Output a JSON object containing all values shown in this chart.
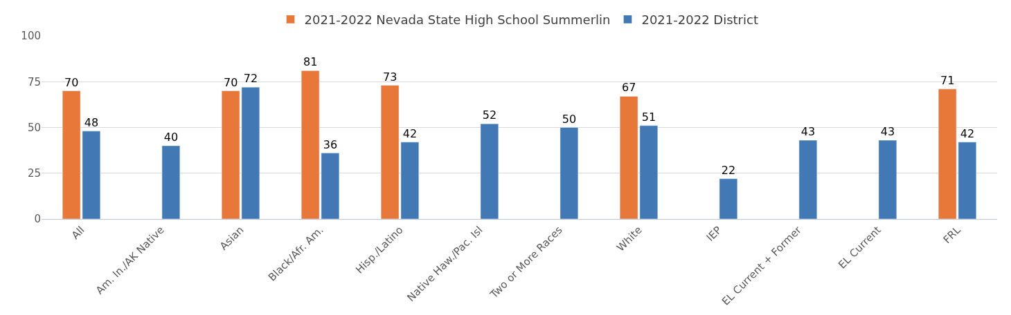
{
  "chart_data": {
    "type": "bar",
    "categories": [
      "All",
      "Am. In./AK Native",
      "Asian",
      "Black/Afr. Am.",
      "Hisp./Latino",
      "Native Haw./Pac. Isl",
      "Two or More Races",
      "White",
      "IEP",
      "EL Current + Former",
      "EL Current",
      "FRL"
    ],
    "series": [
      {
        "name": "2021-2022 Nevada State High School Summerlin",
        "color": "#e8773a",
        "values": [
          70,
          null,
          70,
          81,
          73,
          null,
          null,
          67,
          null,
          null,
          null,
          71
        ]
      },
      {
        "name": "2021-2022 District",
        "color": "#4279b4",
        "values": [
          48,
          40,
          72,
          36,
          42,
          52,
          50,
          51,
          22,
          43,
          43,
          42
        ]
      }
    ],
    "ylim": [
      0,
      100
    ],
    "yticks": [
      0,
      25,
      50,
      75,
      100
    ],
    "grid": "y",
    "legend": "top",
    "data_labels": true
  }
}
